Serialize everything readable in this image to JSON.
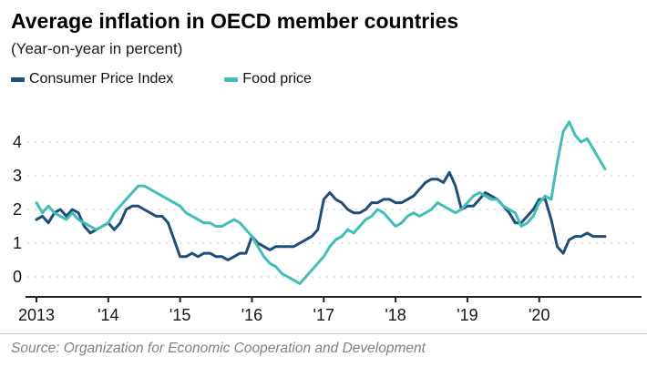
{
  "header": {
    "title": "Average inflation in OECD member countries",
    "subtitle": "(Year-on-year in percent)"
  },
  "legend": {
    "items": [
      {
        "label": "Consumer Price Index",
        "color": "#1f4e79"
      },
      {
        "label": "Food price",
        "color": "#41bfb6"
      }
    ]
  },
  "source": "Source: Organization for Economic Cooperation and Development",
  "chart_data": {
    "type": "line",
    "title": "Average inflation in OECD member countries",
    "subtitle": "(Year-on-year in percent)",
    "xlabel": "",
    "ylabel": "Year-on-year in percent",
    "x_frequency": "monthly",
    "x_start": "2013-01",
    "x_end": "2020-12",
    "x_tick_labels": [
      "2013",
      "'14",
      "'15",
      "'16",
      "'17",
      "'18",
      "'19",
      "'20"
    ],
    "y_ticks": [
      0,
      1,
      2,
      3,
      4
    ],
    "ylim": [
      -0.5,
      4.8
    ],
    "grid": "dashed-horizontal",
    "legend_position": "top-left",
    "series": [
      {
        "name": "Consumer Price Index",
        "color": "#1f4e79",
        "values": [
          1.7,
          1.8,
          1.6,
          1.9,
          2.0,
          1.8,
          2.0,
          1.9,
          1.5,
          1.3,
          1.4,
          1.5,
          1.6,
          1.4,
          1.6,
          2.0,
          2.1,
          2.1,
          2.0,
          1.9,
          1.8,
          1.8,
          1.6,
          1.1,
          0.6,
          0.6,
          0.7,
          0.6,
          0.7,
          0.7,
          0.6,
          0.6,
          0.5,
          0.6,
          0.7,
          0.7,
          1.2,
          1.0,
          0.9,
          0.8,
          0.9,
          0.9,
          0.9,
          0.9,
          1.0,
          1.1,
          1.2,
          1.4,
          2.3,
          2.5,
          2.3,
          2.2,
          2.0,
          1.9,
          1.9,
          2.0,
          2.2,
          2.2,
          2.3,
          2.3,
          2.2,
          2.2,
          2.3,
          2.4,
          2.6,
          2.8,
          2.9,
          2.9,
          2.8,
          3.1,
          2.7,
          2.0,
          2.1,
          2.1,
          2.3,
          2.5,
          2.4,
          2.3,
          2.1,
          1.9,
          1.6,
          1.6,
          1.8,
          2.0,
          2.3,
          2.3,
          1.7,
          0.9,
          0.7,
          1.1,
          1.2,
          1.2,
          1.3,
          1.2,
          1.2,
          1.2
        ]
      },
      {
        "name": "Food price",
        "color": "#41bfb6",
        "values": [
          2.2,
          1.9,
          2.1,
          1.9,
          1.8,
          1.7,
          1.9,
          1.7,
          1.6,
          1.5,
          1.4,
          1.5,
          1.6,
          1.9,
          2.1,
          2.3,
          2.5,
          2.7,
          2.7,
          2.6,
          2.5,
          2.4,
          2.3,
          2.2,
          2.1,
          1.9,
          1.8,
          1.7,
          1.6,
          1.6,
          1.5,
          1.5,
          1.6,
          1.7,
          1.6,
          1.4,
          1.2,
          0.9,
          0.6,
          0.4,
          0.3,
          0.1,
          0.0,
          -0.1,
          -0.2,
          0.0,
          0.2,
          0.4,
          0.6,
          0.9,
          1.1,
          1.2,
          1.4,
          1.3,
          1.5,
          1.7,
          1.8,
          2.0,
          1.9,
          1.7,
          1.5,
          1.6,
          1.8,
          1.9,
          1.8,
          1.9,
          2.0,
          2.2,
          2.1,
          2.0,
          1.9,
          2.0,
          2.2,
          2.4,
          2.5,
          2.4,
          2.3,
          2.3,
          2.1,
          2.0,
          1.9,
          1.5,
          1.6,
          1.8,
          2.2,
          2.4,
          2.3,
          3.4,
          4.3,
          4.6,
          4.2,
          4.0,
          4.1,
          3.8,
          3.5,
          3.2
        ]
      }
    ]
  }
}
